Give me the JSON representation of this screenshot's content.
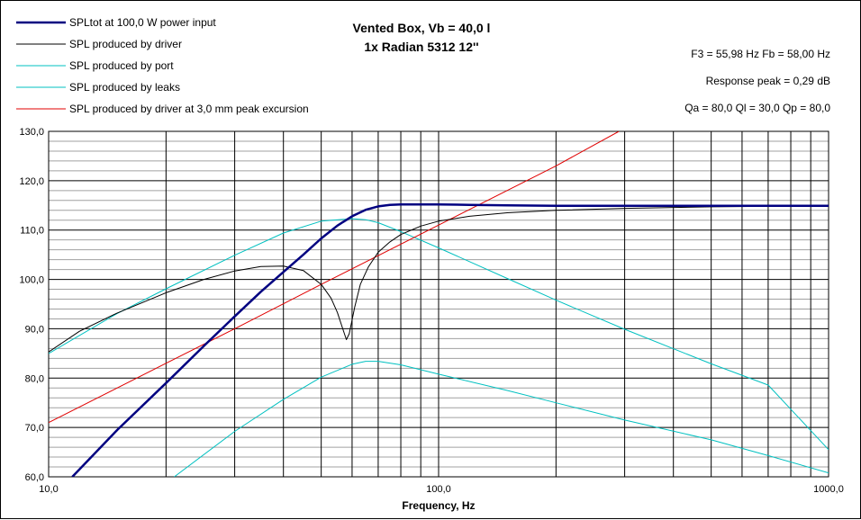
{
  "chart_data": {
    "type": "line",
    "title": "Vented Box, Vb = 40,0 l",
    "subtitle": "1x Radian 5312 12''",
    "info": [
      "F3 = 55,98 Hz  Fb = 58,00 Hz",
      "Response peak = 0,29 dB",
      "Qa = 80,0  Ql = 30,0  Qp = 80,0"
    ],
    "xlabel": "Frequency, Hz",
    "ylabel": "",
    "xscale": "log",
    "xlim": [
      10,
      1000
    ],
    "ylim": [
      60,
      130
    ],
    "xticks": [
      10,
      100,
      1000
    ],
    "xtick_labels": [
      "10,0",
      "100,0",
      "1000,0"
    ],
    "yticks": [
      60,
      70,
      80,
      90,
      100,
      110,
      120,
      130
    ],
    "ytick_labels": [
      "60,0",
      "70,0",
      "80,0",
      "90,0",
      "100,0",
      "110,0",
      "120,0",
      "130,0"
    ],
    "grid": true,
    "legend_position": "top-left",
    "series": [
      {
        "name": "SPLtot at 100,0 W power input",
        "color": "#000080",
        "width": 2.5,
        "x": [
          11.5,
          15,
          20,
          25,
          30,
          35,
          40,
          45,
          50,
          55,
          60,
          65,
          70,
          75,
          80,
          90,
          100,
          120,
          150,
          200,
          300,
          500,
          1000
        ],
        "y": [
          60,
          69.5,
          79,
          86.5,
          92.5,
          97.5,
          101.5,
          105,
          108.3,
          110.9,
          112.8,
          114.1,
          114.8,
          115.1,
          115.2,
          115.2,
          115.2,
          115.1,
          115,
          114.9,
          114.9,
          114.9,
          114.9
        ]
      },
      {
        "name": "SPL produced by driver",
        "color": "#000000",
        "width": 1,
        "x": [
          10,
          12,
          15,
          20,
          25,
          30,
          35,
          40,
          45,
          50,
          53,
          55,
          57,
          58,
          59,
          61,
          63,
          66,
          70,
          75,
          80,
          90,
          100,
          120,
          150,
          200,
          300,
          500,
          1000
        ],
        "y": [
          85.3,
          89.5,
          93.2,
          97.3,
          100,
          101.7,
          102.6,
          102.7,
          101.8,
          99,
          96.2,
          93.3,
          89.6,
          87.8,
          89,
          94.5,
          99,
          102.5,
          105.5,
          107.6,
          109.1,
          110.8,
          111.8,
          112.8,
          113.5,
          114,
          114.4,
          114.7,
          114.9
        ]
      },
      {
        "name": "SPL produced by port",
        "color": "#00c0c0",
        "width": 1,
        "x": [
          10,
          15,
          20,
          30,
          40,
          50,
          60,
          65,
          70,
          80,
          100,
          150,
          200,
          300,
          500,
          700,
          1000
        ],
        "y": [
          85,
          93.1,
          98.1,
          104.9,
          109.4,
          111.8,
          112.3,
          112.1,
          111.5,
          109.7,
          106.4,
          100.2,
          95.8,
          89.9,
          82.9,
          78.6,
          65.5
        ]
      },
      {
        "name": "SPL produced by leaks",
        "color": "#00c0c0",
        "width": 1,
        "x": [
          21,
          30,
          40,
          50,
          60,
          65,
          70,
          80,
          100,
          150,
          200,
          300,
          500,
          700,
          1000
        ],
        "y": [
          60,
          69.2,
          75.7,
          80.2,
          82.8,
          83.4,
          83.4,
          82.7,
          80.8,
          77.5,
          75,
          71.5,
          67.5,
          64.3,
          60.8
        ]
      },
      {
        "name": "SPL produced by driver at 3,0 mm peak excursion",
        "color": "#e00000",
        "width": 1,
        "x": [
          10,
          20,
          30,
          50,
          100,
          200,
          290
        ],
        "y": [
          71,
          83,
          90,
          99,
          111,
          123,
          130
        ]
      }
    ]
  }
}
